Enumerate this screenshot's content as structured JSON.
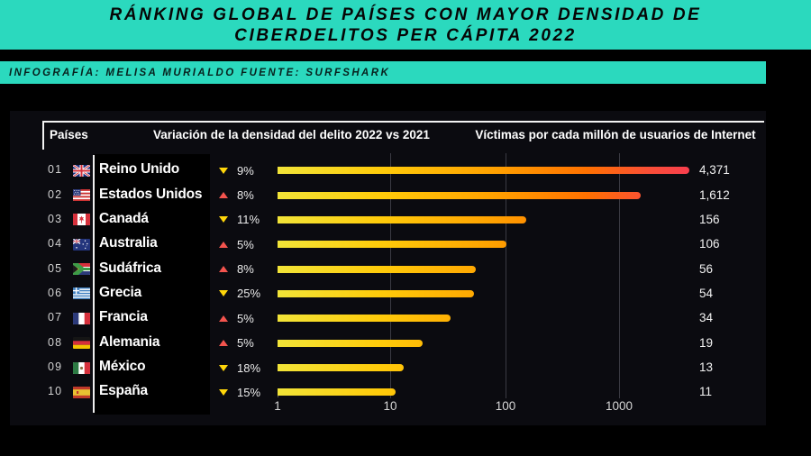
{
  "title": {
    "line1": "RÁNKING GLOBAL DE PAÍSES CON MAYOR DENSIDAD DE",
    "line2": "CIBERDELITOS PER CÁPITA 2022"
  },
  "infobar": {
    "text": "INFOGRAFÍA: MELISA MURIALDO FUENTE: SURFSHARK"
  },
  "table_headers": {
    "countries": "Países",
    "variation": "Variación de la densidad del delito 2022 vs 2021",
    "victims": "Víctimas por cada millón de usuarios de Internet"
  },
  "chart_data": {
    "type": "bar",
    "orientation": "horizontal",
    "x_scale": "log",
    "x_ticks": [
      "1",
      "10",
      "100",
      "1000"
    ],
    "x_range": [
      1,
      5000
    ],
    "grid": "vertical-at-decades",
    "title": "Ránking global de países con mayor densidad de ciberdelitos per cápita 2022",
    "value_label": "Víctimas por cada millón de usuarios de Internet",
    "rows": [
      {
        "rank": "01",
        "country": "Reino Unido",
        "flag": "gb",
        "direction": "down",
        "change": "9%",
        "victims": 4371,
        "victims_label": "4,371"
      },
      {
        "rank": "02",
        "country": "Estados Unidos",
        "flag": "us",
        "direction": "up",
        "change": "8%",
        "victims": 1612,
        "victims_label": "1,612"
      },
      {
        "rank": "03",
        "country": "Canadá",
        "flag": "ca",
        "direction": "down",
        "change": "11%",
        "victims": 156,
        "victims_label": "156"
      },
      {
        "rank": "04",
        "country": "Australia",
        "flag": "au",
        "direction": "up",
        "change": "5%",
        "victims": 106,
        "victims_label": "106"
      },
      {
        "rank": "05",
        "country": "Sudáfrica",
        "flag": "za",
        "direction": "up",
        "change": "8%",
        "victims": 56,
        "victims_label": "56"
      },
      {
        "rank": "06",
        "country": "Grecia",
        "flag": "gr",
        "direction": "down",
        "change": "25%",
        "victims": 54,
        "victims_label": "54"
      },
      {
        "rank": "07",
        "country": "Francia",
        "flag": "fr",
        "direction": "up",
        "change": "5%",
        "victims": 34,
        "victims_label": "34"
      },
      {
        "rank": "08",
        "country": "Alemania",
        "flag": "de",
        "direction": "up",
        "change": "5%",
        "victims": 19,
        "victims_label": "19"
      },
      {
        "rank": "09",
        "country": "México",
        "flag": "mx",
        "direction": "down",
        "change": "18%",
        "victims": 13,
        "victims_label": "13"
      },
      {
        "rank": "10",
        "country": "España",
        "flag": "es",
        "direction": "down",
        "change": "15%",
        "victims": 11,
        "victims_label": "11"
      }
    ]
  },
  "colors": {
    "teal": "#2bd9be",
    "panel_bg": "#0b0b10",
    "bar_gradient_start": "#f2e438",
    "bar_gradient_mid": "#ffa200",
    "bar_gradient_end": "#f93e4e",
    "down_triangle": "#ffd60a",
    "up_triangle": "#f4544e",
    "gridline": "#3a3a42"
  }
}
